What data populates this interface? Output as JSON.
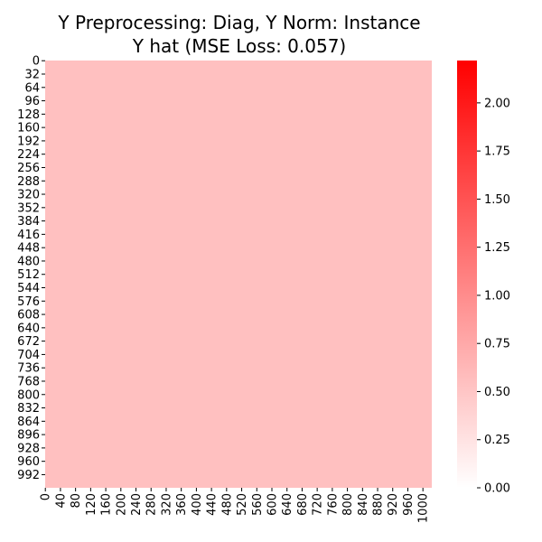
{
  "chart_data": {
    "type": "heatmap",
    "title_lines": [
      "Y Preprocessing: Diag, Y Norm: Instance",
      "Y hat (MSE Loss: 0.057)"
    ],
    "xlabel": "",
    "ylabel": "",
    "n_rows": 1024,
    "n_cols": 1024,
    "cell_value_uniform": 0.55,
    "y_tick_labels": [
      "0",
      "32",
      "64",
      "96",
      "128",
      "160",
      "192",
      "224",
      "256",
      "288",
      "320",
      "352",
      "384",
      "416",
      "448",
      "480",
      "512",
      "544",
      "576",
      "608",
      "640",
      "672",
      "704",
      "736",
      "768",
      "800",
      "832",
      "864",
      "896",
      "928",
      "960",
      "992"
    ],
    "x_tick_labels": [
      "0",
      "40",
      "80",
      "120",
      "160",
      "200",
      "240",
      "280",
      "320",
      "360",
      "400",
      "440",
      "480",
      "520",
      "560",
      "600",
      "640",
      "680",
      "720",
      "760",
      "800",
      "840",
      "880",
      "920",
      "960",
      "1000"
    ],
    "colorbar": {
      "vmin": 0.0,
      "vmax": 2.22,
      "colormap": [
        "#ffffff",
        "#ff0000"
      ],
      "tick_values": [
        0.0,
        0.25,
        0.5,
        0.75,
        1.0,
        1.25,
        1.5,
        1.75,
        2.0
      ],
      "tick_labels": [
        "0.00",
        "0.25",
        "0.50",
        "0.75",
        "1.00",
        "1.25",
        "1.50",
        "1.75",
        "2.00"
      ]
    }
  }
}
